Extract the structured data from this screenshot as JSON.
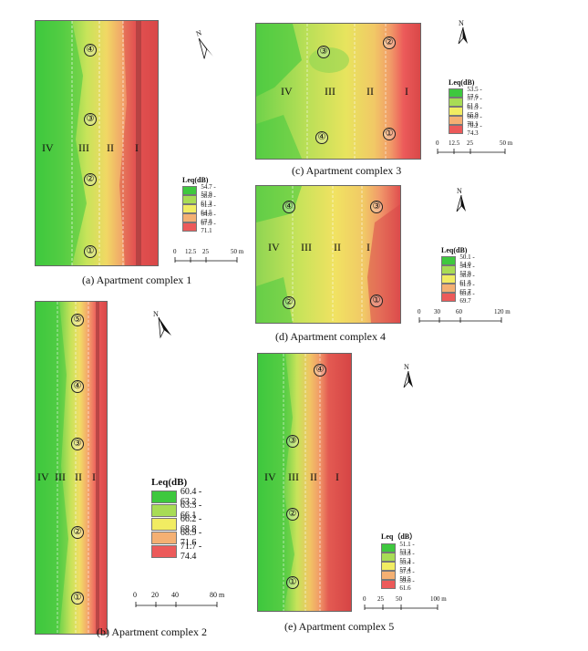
{
  "colors": {
    "c1": "#3ec83e",
    "c2": "#a8dc55",
    "c3": "#f1ec62",
    "c4": "#f4b073",
    "c5": "#ec5a5a"
  },
  "north_label": "N",
  "zones": [
    "IV",
    "III",
    "II",
    "I"
  ],
  "points": [
    "①",
    "②",
    "③",
    "④",
    "⑤"
  ],
  "panels": {
    "a": {
      "caption": "(a) Apartment complex 1",
      "legend_title": "Leq(dB)",
      "legend": [
        "54.7 - 57.9",
        "58.0 - 61.2",
        "61.3 - 64.5",
        "64.6 - 67.8",
        "67.9 - 71.1"
      ],
      "scale": [
        "0",
        "12.5",
        "25",
        "50 m"
      ]
    },
    "b": {
      "caption": "(b) Apartment complex 2",
      "legend_title": "Leq(dB)",
      "legend": [
        "60.4 - 63.2",
        "63.3 - 66.1",
        "66.2 - 68.8",
        "68.9 - 71.6",
        "71.7 - 74.4"
      ],
      "scale": [
        "0",
        "20",
        "40",
        "80 m"
      ]
    },
    "c": {
      "caption": "(c) Apartment complex 3",
      "legend_title": "Leq(dB)",
      "legend": [
        "53.5 - 57.6",
        "57.7 - 61.8",
        "61.9 - 65.9",
        "66.0 - 70.1",
        "70.2 - 74.3"
      ],
      "scale": [
        "0",
        "12.5",
        "25",
        "50 m"
      ]
    },
    "d": {
      "caption": "(d) Apartment complex 4",
      "legend_title": "Leq(dB)",
      "legend": [
        "50.1 - 54.0",
        "54.1 - 57.9",
        "58.0 - 61.8",
        "61.9 - 65.7",
        "65.8 - 69.7"
      ],
      "scale": [
        "0",
        "30",
        "60",
        "120 m"
      ]
    },
    "e": {
      "caption": "(e) Apartment complex 5",
      "legend_title": "Leq（dB）",
      "legend": [
        "51.1 - 53.2",
        "53.3 - 55.3",
        "55.4 - 57.4",
        "57.5 - 59.5",
        "59.6 - 61.6"
      ],
      "scale": [
        "0",
        "25",
        "50",
        "100 m"
      ]
    }
  }
}
